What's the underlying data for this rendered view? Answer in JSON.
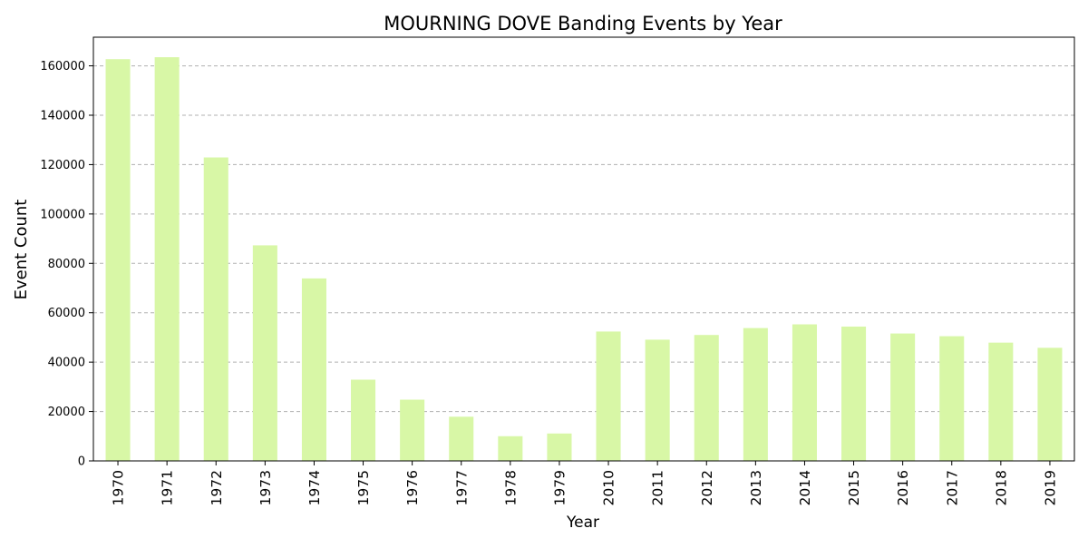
{
  "chart_data": {
    "type": "bar",
    "title": "MOURNING DOVE Banding Events by Year",
    "xlabel": "Year",
    "ylabel": "Event Count",
    "categories": [
      "1970",
      "1971",
      "1972",
      "1973",
      "1974",
      "1975",
      "1976",
      "1977",
      "1978",
      "1979",
      "2010",
      "2011",
      "2012",
      "2013",
      "2014",
      "2015",
      "2016",
      "2017",
      "2018",
      "2019"
    ],
    "values": [
      162700,
      163500,
      122900,
      87300,
      73900,
      32900,
      24800,
      17900,
      10000,
      11100,
      52400,
      49100,
      51000,
      53800,
      55300,
      54400,
      51600,
      50500,
      47900,
      45800
    ],
    "ylim": [
      0,
      171600
    ],
    "yticks": [
      0,
      20000,
      40000,
      60000,
      80000,
      100000,
      120000,
      140000,
      160000
    ],
    "ytick_labels": [
      "0",
      "20000",
      "40000",
      "60000",
      "80000",
      "100000",
      "120000",
      "140000",
      "160000"
    ],
    "grid": "y-dashed",
    "bar_color": "#d8f7a6"
  }
}
